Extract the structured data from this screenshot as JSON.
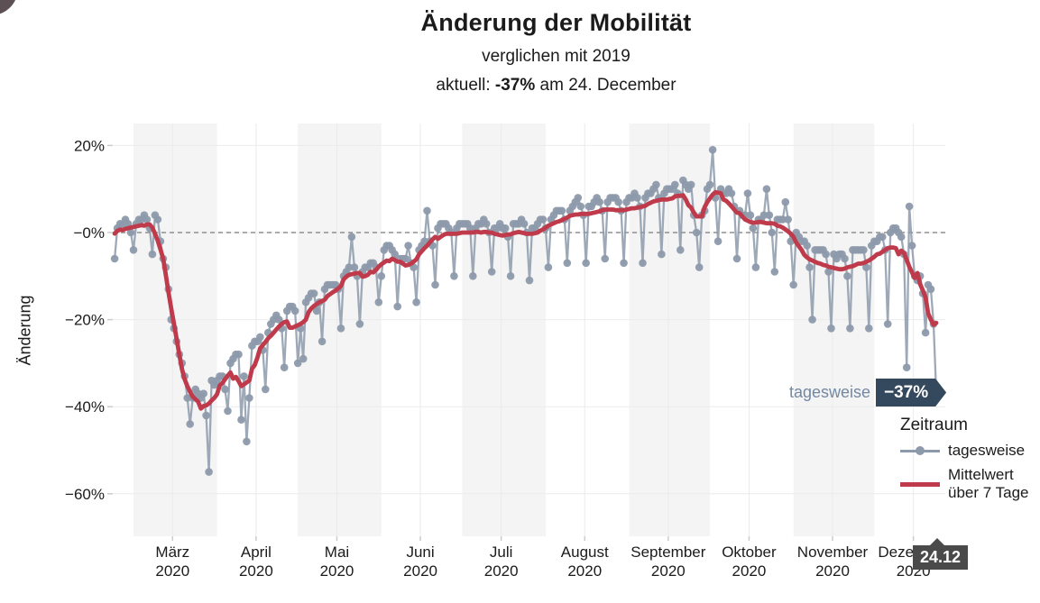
{
  "page": {
    "title": "Änderung der Mobilität",
    "subtitle": "verglichen mit 2019",
    "current_prefix": "aktuell: ",
    "current_value": "-37%",
    "current_suffix": " am 24. December"
  },
  "colors": {
    "daily": "#8d9aab",
    "mean": "#bf3a4b",
    "value_badge_bg": "#35495e",
    "annotation_text": "#7288a3",
    "date_badge_bg": "#4a4a4a",
    "band": "#f4f4f4",
    "grid": "#ebebeb",
    "tick": "#cccccc",
    "zero_line": "#8f8f8f",
    "text": "#1b1b1b",
    "corner_circle": "#5c5054"
  },
  "annotations": {
    "series_label": "tagesweise",
    "value_badge": "−37%",
    "date_badge": "24.12"
  },
  "legend": {
    "title": "Zeitraum",
    "items": [
      {
        "label": "tagesweise",
        "type": "line-dot"
      },
      {
        "label": "Mittelwert über 7 Tage",
        "type": "line"
      }
    ]
  },
  "axes": {
    "y_label": "Änderung",
    "y_ticks": [
      {
        "value": 20,
        "label": "20%"
      },
      {
        "value": 0,
        "label": "−0%"
      },
      {
        "value": -20,
        "label": "−20%"
      },
      {
        "value": -40,
        "label": "−40%"
      },
      {
        "value": -60,
        "label": "−60%"
      }
    ],
    "x_ticks": [
      {
        "month": "März",
        "year": "2020"
      },
      {
        "month": "April",
        "year": "2020"
      },
      {
        "month": "Mai",
        "year": "2020"
      },
      {
        "month": "Juni",
        "year": "2020"
      },
      {
        "month": "Juli",
        "year": "2020"
      },
      {
        "month": "August",
        "year": "2020"
      },
      {
        "month": "September",
        "year": "2020"
      },
      {
        "month": "Oktober",
        "year": "2020"
      },
      {
        "month": "November",
        "year": "2020"
      },
      {
        "month": "Dezember",
        "year": "2020"
      }
    ]
  },
  "chart_data": {
    "type": "line",
    "title": "Änderung der Mobilität",
    "subtitle": "verglichen mit 2019",
    "unit": "percent change vs 2019",
    "x_start_date": "2020-02-23",
    "x_end_date": "2020-12-24",
    "x_step": "1 day",
    "ylim": [
      -65,
      25
    ],
    "zero_reference_line": true,
    "shaded_months": [
      "März",
      "Mai",
      "Juli",
      "September",
      "November"
    ],
    "current_point": {
      "date": "2020-12-24",
      "value": -37
    },
    "series": [
      {
        "name": "tagesweise",
        "style": "line-with-dots",
        "values": [
          -6,
          1,
          2,
          2,
          3,
          2,
          0,
          -4,
          2,
          3,
          3,
          4,
          3,
          1,
          -5,
          4,
          3,
          -2,
          -6,
          -8,
          -13,
          -20,
          -22,
          -25,
          -28,
          -30,
          -33,
          -38,
          -44,
          -38,
          -36,
          -37,
          -38,
          -37,
          -42,
          -55,
          -34,
          -35,
          -34,
          -33,
          -33,
          -36,
          -41,
          -30,
          -29,
          -28,
          -28,
          -43,
          -33,
          -48,
          -38,
          -26,
          -25,
          -25,
          -24,
          -27,
          -36,
          -23,
          -21,
          -20,
          -19,
          -20,
          -22,
          -31,
          -18,
          -17,
          -17,
          -18,
          -30,
          -22,
          -29,
          -16,
          -15,
          -14,
          -14,
          -18,
          -16,
          -25,
          -13,
          -12,
          -12,
          -12,
          -12,
          -13,
          -22,
          -10,
          -9,
          -8,
          -1,
          -8,
          -10,
          -21,
          -9,
          -8,
          -8,
          -7,
          -7,
          -8,
          -16,
          -10,
          -4,
          -3,
          -3,
          -4,
          -5,
          -17,
          -6,
          -6,
          -6,
          -3,
          -7,
          -8,
          -16,
          -4,
          -3,
          -2,
          5,
          -2,
          -3,
          -12,
          1,
          2,
          2,
          2,
          1,
          0,
          -10,
          1,
          2,
          2,
          2,
          2,
          1,
          -10,
          1,
          2,
          2,
          3,
          2,
          0,
          -9,
          1,
          1,
          2,
          1,
          1,
          -1,
          -10,
          2,
          2,
          2,
          3,
          2,
          0,
          -11,
          1,
          1,
          2,
          3,
          3,
          1,
          -8,
          3,
          4,
          5,
          5,
          5,
          3,
          -7,
          5,
          6,
          7,
          8,
          6,
          4,
          -7,
          6,
          6,
          7,
          8,
          7,
          5,
          -6,
          7,
          8,
          8,
          8,
          7,
          5,
          -7,
          7,
          8,
          8,
          9,
          8,
          6,
          -7,
          8,
          9,
          9,
          10,
          11,
          8,
          -5,
          9,
          10,
          10,
          10,
          11,
          9,
          -4,
          12,
          11,
          10,
          11,
          4,
          0,
          -8,
          4,
          5,
          10,
          11,
          19,
          8,
          -2,
          10,
          9,
          9,
          10,
          9,
          6,
          -6,
          5,
          4,
          4,
          9,
          4,
          1,
          -8,
          3,
          3,
          4,
          10,
          4,
          0,
          -9,
          3,
          3,
          3,
          7,
          3,
          -2,
          -12,
          0,
          -1,
          -2,
          -2,
          -3,
          -8,
          -20,
          -4,
          -4,
          -4,
          -4,
          -5,
          -9,
          -22,
          -5,
          -6,
          -5,
          -5,
          -6,
          -10,
          -22,
          -4,
          -4,
          -4,
          -4,
          -4,
          -8,
          -22,
          -3,
          -2,
          -2,
          -1,
          -1,
          -4,
          -21,
          0,
          1,
          1,
          0,
          -1,
          -5,
          -31,
          6,
          -3,
          -10,
          -11,
          -10,
          -14,
          -23,
          -12,
          -13,
          -21,
          -37
        ]
      },
      {
        "name": "Mittelwert über 7 Tage",
        "style": "thick-line",
        "derived": "7-day centered rolling mean of tagesweise"
      }
    ]
  }
}
